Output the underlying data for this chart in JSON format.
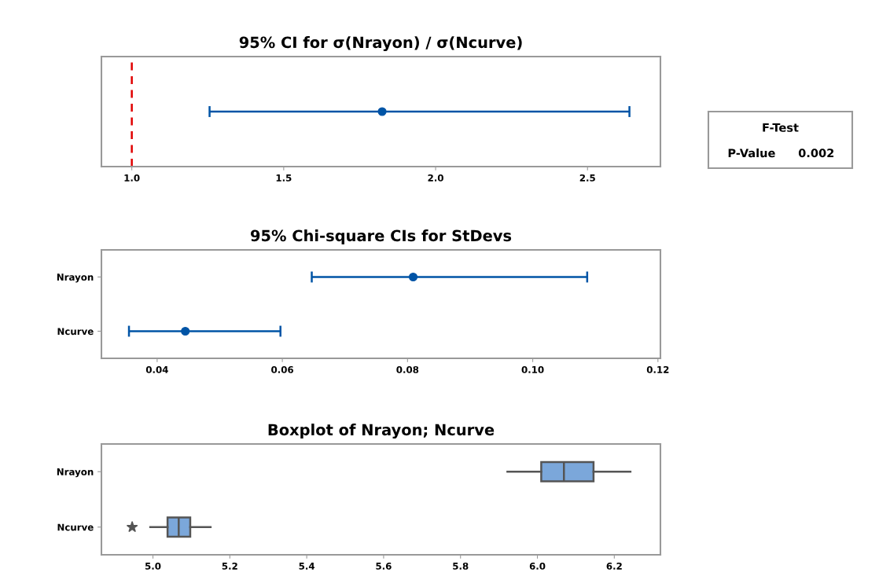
{
  "chart_data": [
    {
      "type": "scatter",
      "title": "95% CI for σ(Nrayon) / σ(Ncurve)",
      "orientation": "horizontal",
      "categories": [
        null
      ],
      "color": "#0054a6",
      "values": [
        1.824
      ],
      "errors": [
        [
          1.256,
          2.638
        ]
      ],
      "marker": "circle",
      "xlim": [
        0.9,
        2.74
      ],
      "xticks": [
        {
          "value": 1.0,
          "label": "1.0"
        },
        1.5,
        {
          "value": 2.0,
          "label": "2.0"
        },
        2.5
      ],
      "ref_lines": [
        {
          "axis": "x",
          "value": 1.0,
          "color": "#e00000",
          "line_style": "dashed"
        }
      ]
    },
    {
      "type": "scatter",
      "title": "95% Chi-square CIs for StDevs",
      "orientation": "horizontal",
      "categories": [
        "Nrayon",
        "Ncurve"
      ],
      "color": "#0054a6",
      "values": [
        0.0809,
        0.0445
      ],
      "errors": [
        [
          0.0647,
          0.1087
        ],
        [
          0.0355,
          0.0597
        ]
      ],
      "marker": "circle",
      "xlim": [
        0.0311,
        0.1204
      ],
      "xticks": [
        0.04,
        0.06,
        0.08,
        {
          "value": 0.1,
          "label": "0.10"
        },
        0.12
      ]
    },
    {
      "type": "box",
      "title": "Boxplot of Nrayon; Ncurve",
      "orientation": "horizontal",
      "categories": [
        "Nrayon",
        "Ncurve"
      ],
      "color": "#7ba7da",
      "boxes": [
        {
          "low": 5.922,
          "q1": 6.01,
          "median": 6.069,
          "q3": 6.146,
          "high": 6.242
        },
        {
          "low": 4.993,
          "q1": 5.038,
          "median": 5.067,
          "q3": 5.097,
          "high": 5.15,
          "outliers": [
            4.946
          ]
        }
      ],
      "xlim": [
        4.866,
        6.32
      ],
      "xticks": [
        {
          "value": 5.0,
          "label": "5.0"
        },
        5.2,
        5.4,
        5.6,
        5.8,
        {
          "value": 6.0,
          "label": "6.0"
        },
        6.2
      ]
    },
    {
      "type": "other",
      "title": "F-Test",
      "annotations": [
        "P-Value",
        "0.002"
      ]
    }
  ]
}
